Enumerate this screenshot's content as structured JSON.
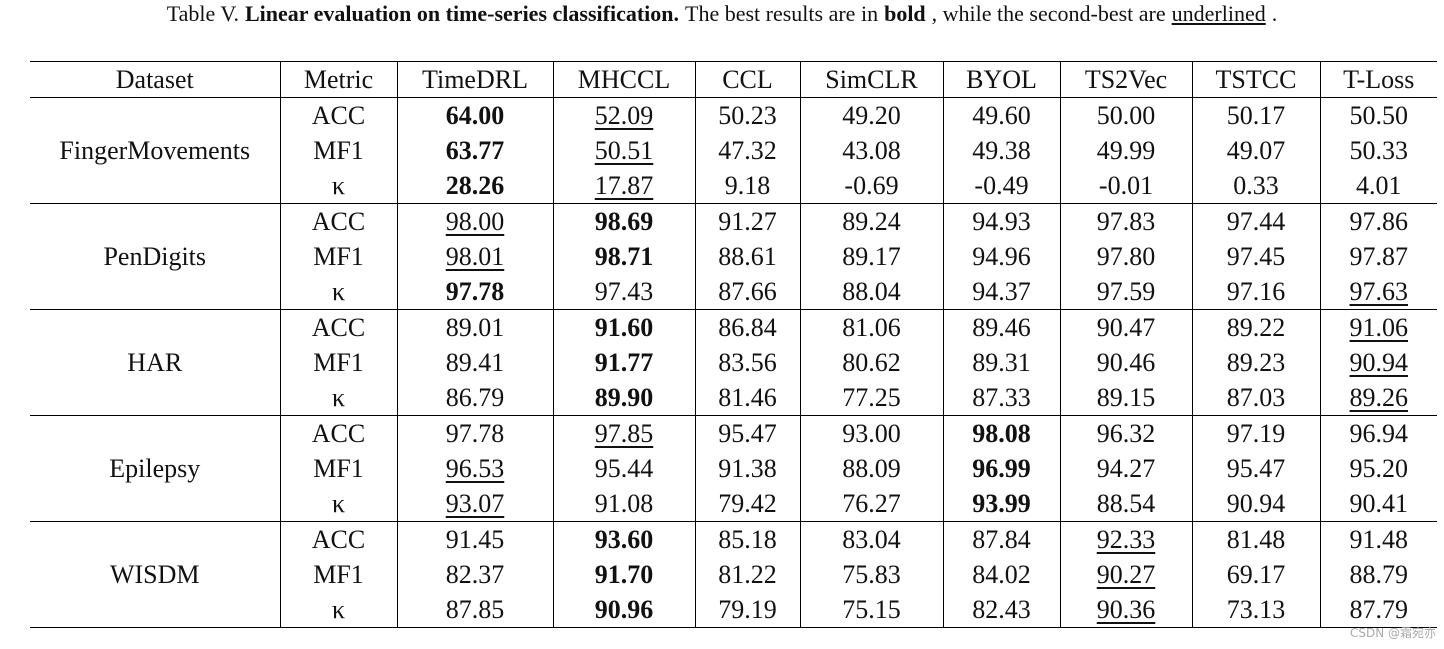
{
  "caption": {
    "parts": [
      {
        "text": "Table V.",
        "style": "normal"
      },
      {
        "text": "Linear evaluation on time-series classification.",
        "style": "bold"
      },
      {
        "text": "The best results are in",
        "style": "normal"
      },
      {
        "text": "bold",
        "style": "bold"
      },
      {
        "text": ", while the second-best are",
        "style": "normal"
      },
      {
        "text": "underlined",
        "style": "underline"
      },
      {
        "text": ".",
        "style": "normal"
      }
    ]
  },
  "table": {
    "header": [
      "Dataset",
      "Metric",
      "TimeDRL",
      "MHCCL",
      "CCL",
      "SimCLR",
      "BYOL",
      "TS2Vec",
      "TSTCC",
      "T-Loss"
    ],
    "groups": [
      {
        "dataset": "FingerMovements",
        "rows": [
          {
            "metric": "ACC",
            "values": [
              "64.00",
              "52.09",
              "50.23",
              "49.20",
              "49.60",
              "50.00",
              "50.17",
              "50.50"
            ],
            "bold": [
              0
            ],
            "underline": [
              1
            ]
          },
          {
            "metric": "MF1",
            "values": [
              "63.77",
              "50.51",
              "47.32",
              "43.08",
              "49.38",
              "49.99",
              "49.07",
              "50.33"
            ],
            "bold": [
              0
            ],
            "underline": [
              1
            ]
          },
          {
            "metric": "κ",
            "values": [
              "28.26",
              "17.87",
              "9.18",
              "-0.69",
              "-0.49",
              "-0.01",
              "0.33",
              "4.01"
            ],
            "bold": [
              0
            ],
            "underline": [
              1
            ]
          }
        ]
      },
      {
        "dataset": "PenDigits",
        "rows": [
          {
            "metric": "ACC",
            "values": [
              "98.00",
              "98.69",
              "91.27",
              "89.24",
              "94.93",
              "97.83",
              "97.44",
              "97.86"
            ],
            "bold": [
              1
            ],
            "underline": [
              0
            ]
          },
          {
            "metric": "MF1",
            "values": [
              "98.01",
              "98.71",
              "88.61",
              "89.17",
              "94.96",
              "97.80",
              "97.45",
              "97.87"
            ],
            "bold": [
              1
            ],
            "underline": [
              0
            ]
          },
          {
            "metric": "κ",
            "values": [
              "97.78",
              "97.43",
              "87.66",
              "88.04",
              "94.37",
              "97.59",
              "97.16",
              "97.63"
            ],
            "bold": [
              0
            ],
            "underline": [
              7
            ]
          }
        ]
      },
      {
        "dataset": "HAR",
        "rows": [
          {
            "metric": "ACC",
            "values": [
              "89.01",
              "91.60",
              "86.84",
              "81.06",
              "89.46",
              "90.47",
              "89.22",
              "91.06"
            ],
            "bold": [
              1
            ],
            "underline": [
              7
            ]
          },
          {
            "metric": "MF1",
            "values": [
              "89.41",
              "91.77",
              "83.56",
              "80.62",
              "89.31",
              "90.46",
              "89.23",
              "90.94"
            ],
            "bold": [
              1
            ],
            "underline": [
              7
            ]
          },
          {
            "metric": "κ",
            "values": [
              "86.79",
              "89.90",
              "81.46",
              "77.25",
              "87.33",
              "89.15",
              "87.03",
              "89.26"
            ],
            "bold": [
              1
            ],
            "underline": [
              7
            ]
          }
        ]
      },
      {
        "dataset": "Epilepsy",
        "rows": [
          {
            "metric": "ACC",
            "values": [
              "97.78",
              "97.85",
              "95.47",
              "93.00",
              "98.08",
              "96.32",
              "97.19",
              "96.94"
            ],
            "bold": [
              4
            ],
            "underline": [
              1
            ]
          },
          {
            "metric": "MF1",
            "values": [
              "96.53",
              "95.44",
              "91.38",
              "88.09",
              "96.99",
              "94.27",
              "95.47",
              "95.20"
            ],
            "bold": [
              4
            ],
            "underline": [
              0
            ]
          },
          {
            "metric": "κ",
            "values": [
              "93.07",
              "91.08",
              "79.42",
              "76.27",
              "93.99",
              "88.54",
              "90.94",
              "90.41"
            ],
            "bold": [
              4
            ],
            "underline": [
              0
            ]
          }
        ]
      },
      {
        "dataset": "WISDM",
        "rows": [
          {
            "metric": "ACC",
            "values": [
              "91.45",
              "93.60",
              "85.18",
              "83.04",
              "87.84",
              "92.33",
              "81.48",
              "91.48"
            ],
            "bold": [
              1
            ],
            "underline": [
              5
            ]
          },
          {
            "metric": "MF1",
            "values": [
              "82.37",
              "91.70",
              "81.22",
              "75.83",
              "84.02",
              "90.27",
              "69.17",
              "88.79"
            ],
            "bold": [
              1
            ],
            "underline": [
              5
            ]
          },
          {
            "metric": "κ",
            "values": [
              "87.85",
              "90.96",
              "79.19",
              "75.15",
              "82.43",
              "90.36",
              "73.13",
              "87.79"
            ],
            "bold": [
              1
            ],
            "underline": [
              5
            ]
          }
        ]
      }
    ]
  },
  "watermark": "CSDN @霜宛亦"
}
